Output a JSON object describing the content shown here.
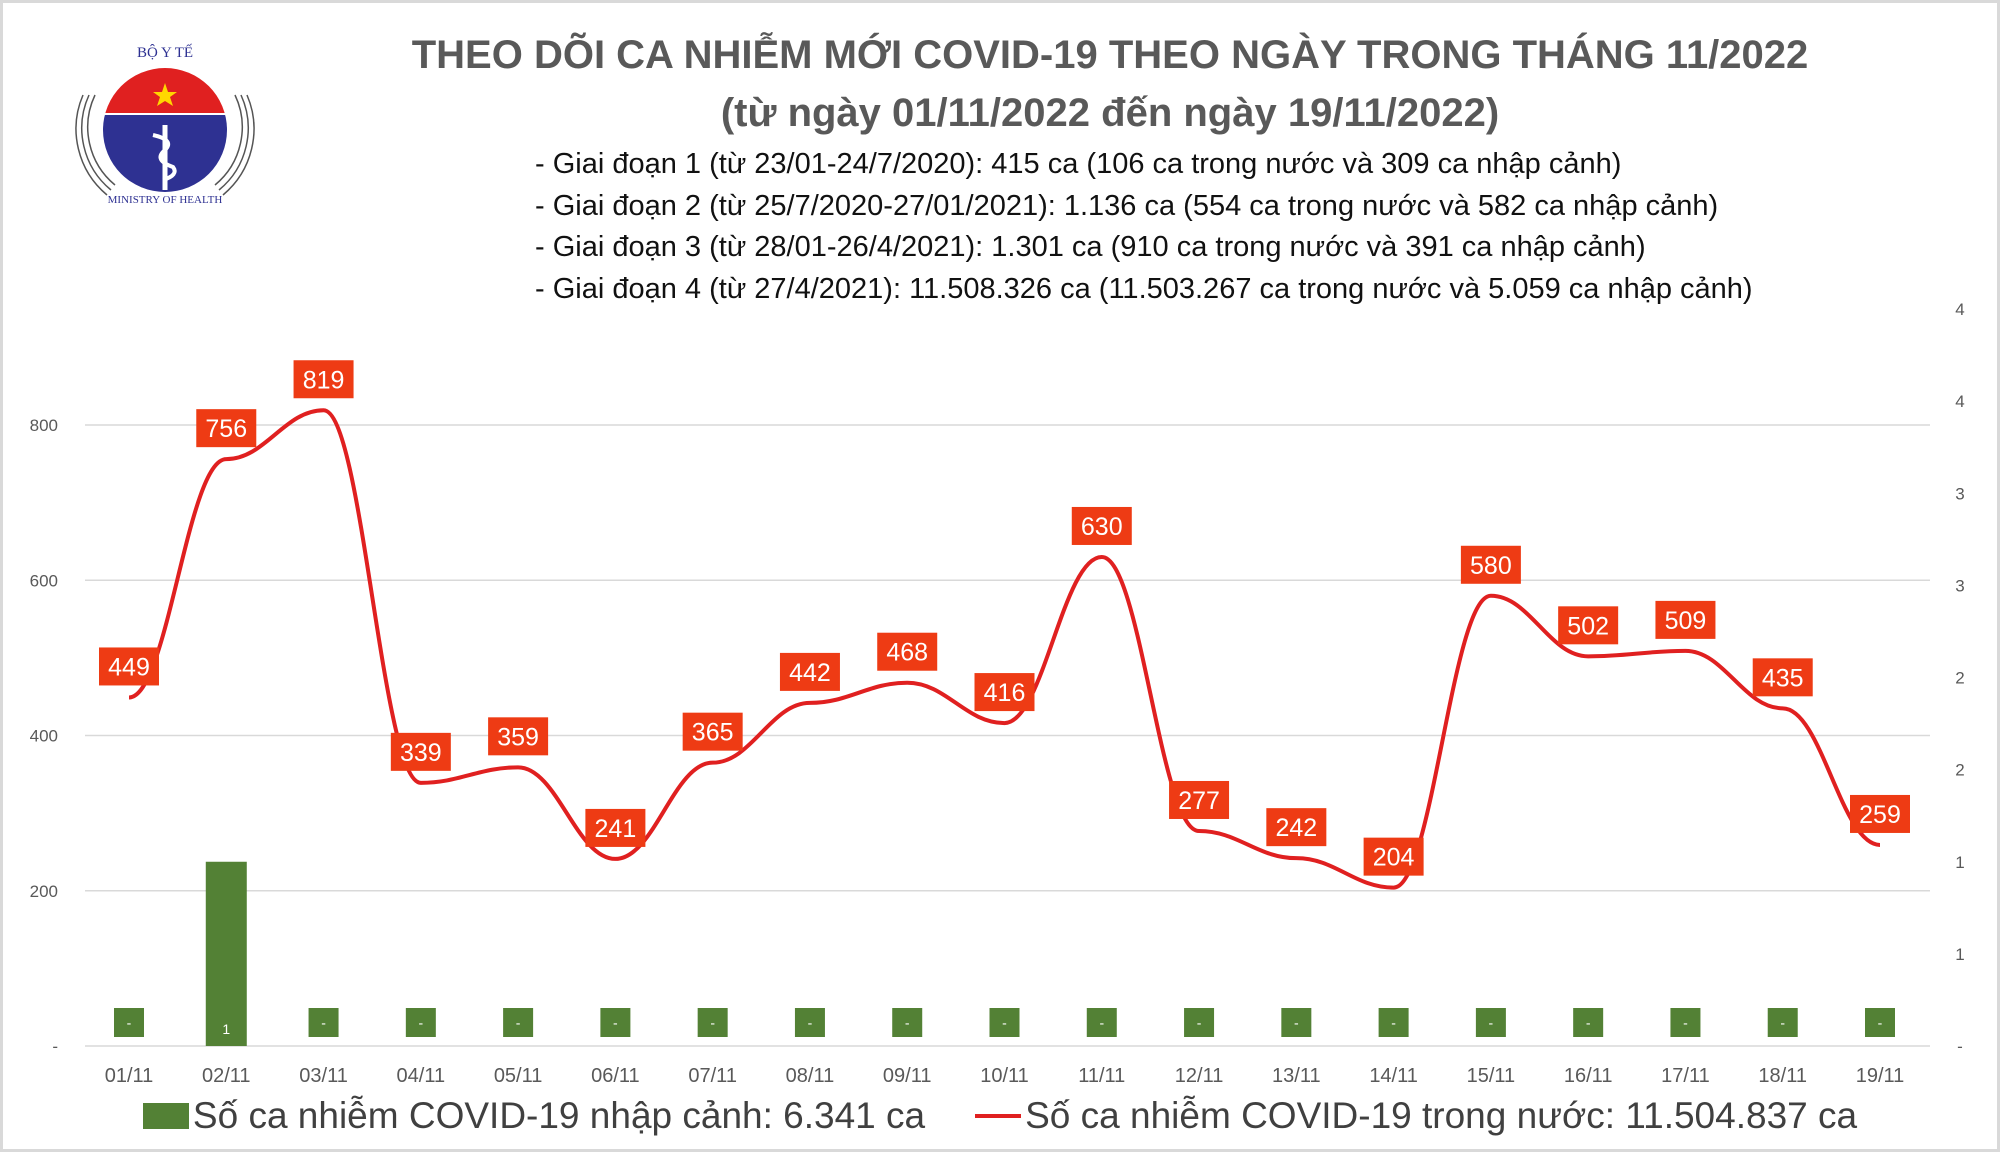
{
  "header": {
    "title": "THEO DÕI CA NHIỄM MỚI COVID-19 THEO NGÀY TRONG THÁNG 11/2022",
    "subtitle": "(từ ngày 01/11/2022 đến ngày 19/11/2022)",
    "notes": [
      "- Giai đoạn 1 (từ 23/01-24/7/2020): 415 ca (106 ca trong nước và 309 ca nhập cảnh)",
      "- Giai đoạn 2 (từ 25/7/2020-27/01/2021): 1.136 ca (554 ca trong nước và 582 ca nhập cảnh)",
      "- Giai đoạn 3 (từ 28/01-26/4/2021): 1.301 ca (910 ca trong nước và 391 ca nhập cảnh)",
      "- Giai đoạn 4 (từ 27/4/2021): 11.508.326 ca (11.503.267 ca trong nước và 5.059 ca nhập cảnh)"
    ]
  },
  "logo": {
    "top_text": "BỘ Y TẾ",
    "bottom_text": "MINISTRY OF HEALTH"
  },
  "chart_data": {
    "type": "bar+line",
    "categories": [
      "01/11",
      "02/11",
      "03/11",
      "04/11",
      "05/11",
      "06/11",
      "07/11",
      "08/11",
      "09/11",
      "10/11",
      "11/11",
      "12/11",
      "13/11",
      "14/11",
      "15/11",
      "16/11",
      "17/11",
      "18/11",
      "19/11"
    ],
    "series": [
      {
        "name": "Số ca nhiễm COVID-19 nhập cảnh: 6.341 ca",
        "type": "bar",
        "axis": "right",
        "color": "#538135",
        "values": [
          0,
          1,
          0,
          0,
          0,
          0,
          0,
          0,
          0,
          0,
          0,
          0,
          0,
          0,
          0,
          0,
          0,
          0,
          0
        ],
        "labels": [
          "-",
          "1",
          "-",
          "-",
          "-",
          "-",
          "-",
          "-",
          "-",
          "-",
          "-",
          "-",
          "-",
          "-",
          "-",
          "-",
          "-",
          "-",
          "-"
        ]
      },
      {
        "name": "Số ca nhiễm COVID-19 trong nước: 11.504.837 ca",
        "type": "line",
        "axis": "left",
        "color": "#e02020",
        "values": [
          449,
          756,
          819,
          339,
          359,
          241,
          365,
          442,
          468,
          416,
          630,
          277,
          242,
          204,
          580,
          502,
          509,
          435,
          259
        ]
      }
    ],
    "left_axis": {
      "ylim": [
        0,
        800
      ],
      "ticks": [
        "-",
        "200",
        "400",
        "600",
        "800"
      ]
    },
    "right_axis": {
      "ticks": [
        "-",
        "1",
        "1",
        "2",
        "2",
        "3",
        "3",
        "4",
        "4"
      ]
    },
    "grid": true,
    "legend": "bottom"
  }
}
